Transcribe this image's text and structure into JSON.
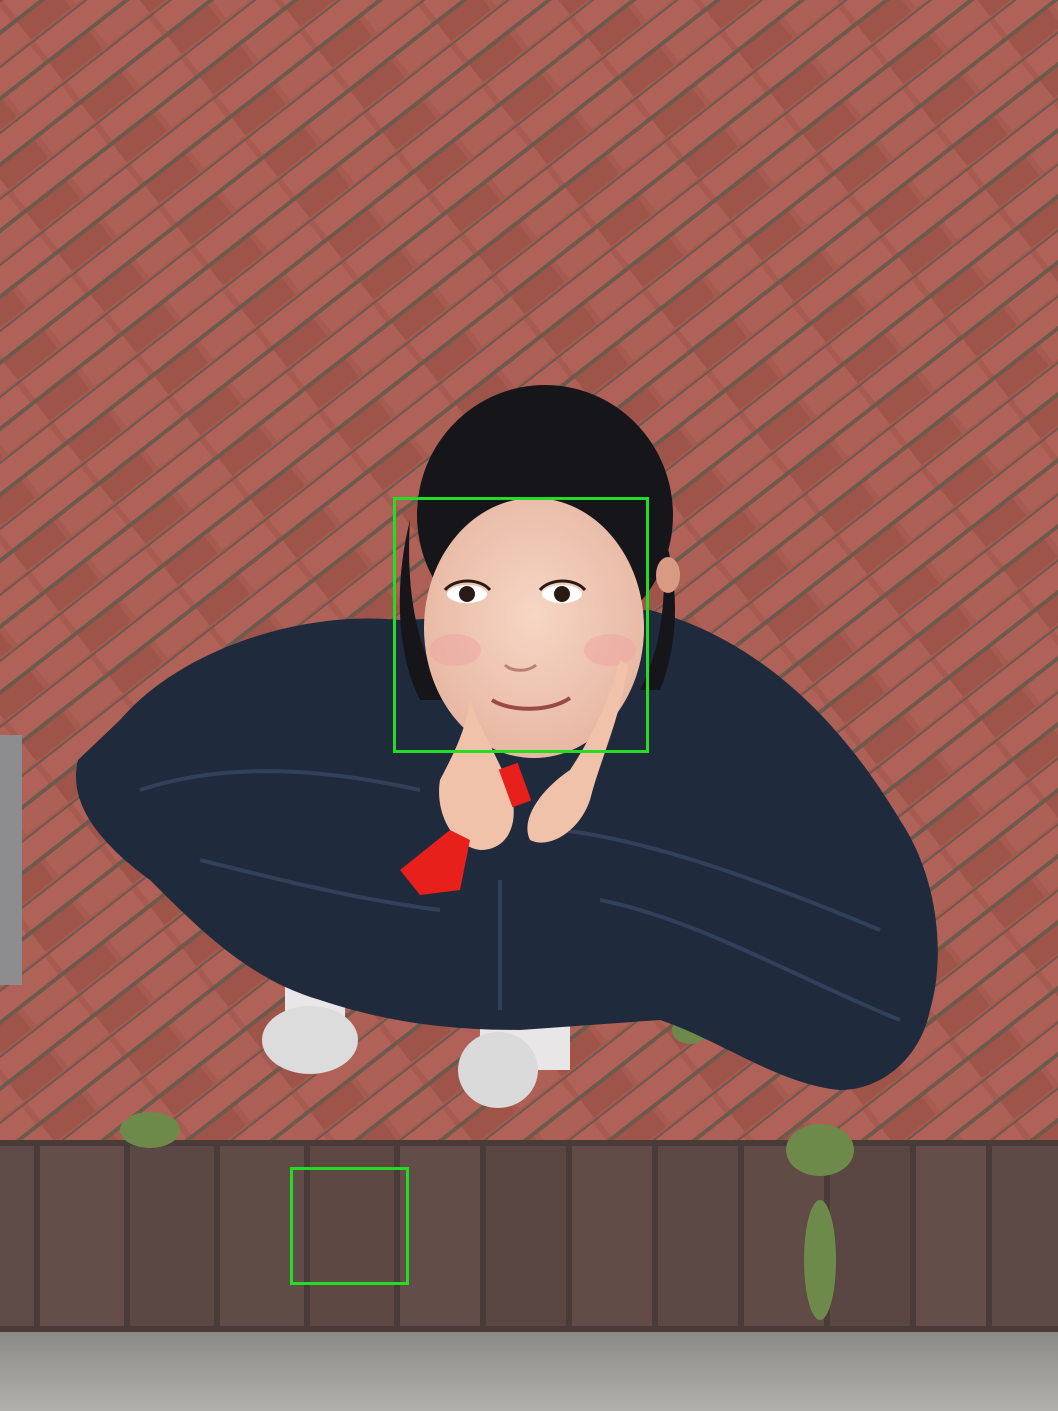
{
  "image": {
    "description_free": true,
    "detections": [
      {
        "label_name": "face"
      },
      {
        "label_name": "false-positive"
      }
    ],
    "colors": {
      "box": "#22dd22",
      "brick": "#a65a50",
      "mortar": "#6e5a4c",
      "curb": "#5e4a46",
      "jacket": "#1f2a3d",
      "hair": "#16161a",
      "skin": "#f0c8b4",
      "toy": "#e8201c"
    }
  }
}
